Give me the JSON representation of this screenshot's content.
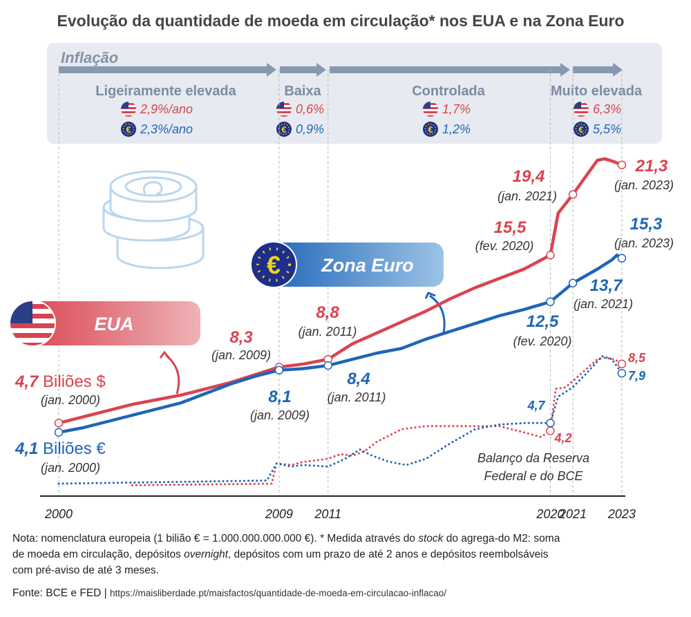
{
  "title": "Evolução da quantidade de moeda em circulação* nos EUA e na Zona Euro",
  "inflation": {
    "heading": "Inflação",
    "periods": [
      {
        "label": "Ligeiramente elevada",
        "us": "2,9%/ano",
        "eu": "2,3%/ano"
      },
      {
        "label": "Baixa",
        "us": "0,6%",
        "eu": "0,9%"
      },
      {
        "label": "Controlada",
        "us": "1,7%",
        "eu": "1,2%"
      },
      {
        "label": "Muito elevada",
        "us": "6,3%",
        "eu": "5,5%"
      }
    ]
  },
  "legend": {
    "us": "EUA",
    "eu": "Zona Euro"
  },
  "balance_label": [
    "Balanço da Reserva",
    "Federal e do BCE"
  ],
  "labels": {
    "us_2000": {
      "value": "4,7",
      "unit": " Biliões $",
      "date": "(jan. 2000)"
    },
    "eu_2000": {
      "value": "4,1",
      "unit": " Biliões €",
      "date": "(jan. 2000)"
    },
    "us_2009": {
      "value": "8,3",
      "date": "(jan. 2009)"
    },
    "eu_2009": {
      "value": "8,1",
      "date": "(jan. 2009)"
    },
    "us_2011": {
      "value": "8,8",
      "date": "(jan. 2011)"
    },
    "eu_2011": {
      "value": "8,4",
      "date": "(jan. 2011)"
    },
    "us_2020": {
      "value": "15,5",
      "date": "(fev. 2020)"
    },
    "eu_2020": {
      "value": "12,5",
      "date": "(fev. 2020)"
    },
    "us_2021": {
      "value": "19,4",
      "date": "(jan. 2021)"
    },
    "eu_2021": {
      "value": "13,7",
      "date": "(jan. 2021)"
    },
    "us_2023": {
      "value": "21,3",
      "date": "(jan. 2023)"
    },
    "eu_2023": {
      "value": "15,3",
      "date": "(jan. 2023)"
    },
    "fed_2020": "4,2",
    "ecb_2020": "4,7",
    "fed_2023": "8,5",
    "ecb_2023": "7,9"
  },
  "note": {
    "p1": "Nota: nomenclatura europeia (1 bilião € = 1.000.000.000.000 €). * Medida através do ",
    "i1": "stock",
    "p2": " do agrega-do M2: soma de moeda em circulação, depósitos ",
    "i2": "overnight",
    "p3": ", depósitos com um prazo de até 2 anos e depósitos reembolsáveis com pré-aviso de até 3 meses."
  },
  "source": {
    "label": "Fonte: BCE e FED",
    "url": "https://maisliberdade.pt/maisfactos/quantidade-de-moeda-em-circulacao-inflacao/"
  },
  "chart_data": {
    "type": "line",
    "title": "Evolução da quantidade de moeda em circulação* nos EUA e na Zona Euro",
    "x_ticks": [
      "2000",
      "2009",
      "2011",
      "2020",
      "2021",
      "2023"
    ],
    "x_tick_values": [
      2000,
      2009,
      2011,
      2020.08,
      2021,
      2023
    ],
    "xlim": [
      2000,
      2023
    ],
    "ylim": [
      0,
      22
    ],
    "grid": "vertical dashed at key dates",
    "colors": {
      "us": "#d9434f",
      "eu": "#1f65b8"
    },
    "series": [
      {
        "name": "EUA",
        "style": "solid",
        "color": "#d9434f",
        "x": [
          2000,
          2001,
          2002,
          2003,
          2004,
          2005,
          2006,
          2007,
          2008,
          2009,
          2010,
          2011,
          2012,
          2013,
          2014,
          2015,
          2016,
          2017,
          2018,
          2019,
          2020.08,
          2020.4,
          2021,
          2021.5,
          2022,
          2022.3,
          2022.7,
          2023
        ],
        "y": [
          4.7,
          5.1,
          5.5,
          5.9,
          6.2,
          6.5,
          6.9,
          7.3,
          7.8,
          8.3,
          8.5,
          8.8,
          9.8,
          10.5,
          11.2,
          11.9,
          12.7,
          13.4,
          14.0,
          14.6,
          15.5,
          18.2,
          19.4,
          20.5,
          21.6,
          21.7,
          21.5,
          21.3
        ]
      },
      {
        "name": "Zona Euro",
        "style": "solid",
        "color": "#1f65b8",
        "x": [
          2000,
          2001,
          2002,
          2003,
          2004,
          2005,
          2006,
          2007,
          2008,
          2009,
          2010,
          2011,
          2012,
          2013,
          2014,
          2015,
          2016,
          2017,
          2018,
          2019,
          2020.08,
          2021,
          2022,
          2022.6,
          2022.8,
          2023
        ],
        "y": [
          4.1,
          4.4,
          4.8,
          5.2,
          5.6,
          6.0,
          6.6,
          7.2,
          7.7,
          8.1,
          8.2,
          8.4,
          8.8,
          9.2,
          9.5,
          10.1,
          10.6,
          11.1,
          11.6,
          12.0,
          12.5,
          13.7,
          14.6,
          15.2,
          15.5,
          15.3
        ]
      },
      {
        "name": "Balanço da Reserva Federal",
        "style": "dotted",
        "color": "#d9434f",
        "x": [
          2003,
          2008.7,
          2008.9,
          2009.5,
          2010,
          2011,
          2011.5,
          2012,
          2012.5,
          2013,
          2014,
          2015,
          2016,
          2017,
          2018,
          2019,
          2019.7,
          2020.08,
          2020.3,
          2020.7,
          2021,
          2021.5,
          2022,
          2022.3,
          2022.7,
          2023
        ],
        "y": [
          0.7,
          0.8,
          2.1,
          2.0,
          2.2,
          2.4,
          2.7,
          2.6,
          2.9,
          3.5,
          4.3,
          4.5,
          4.5,
          4.5,
          4.5,
          4.1,
          3.8,
          4.2,
          6.9,
          7.0,
          7.4,
          8.1,
          8.8,
          8.9,
          8.8,
          8.5
        ]
      },
      {
        "name": "Balanço do BCE",
        "style": "dotted",
        "color": "#1f65b8",
        "x": [
          2000,
          2008.5,
          2008.9,
          2009.5,
          2010,
          2011,
          2011.7,
          2012.3,
          2012.8,
          2013.5,
          2014.2,
          2015,
          2016,
          2017,
          2018,
          2019,
          2020.08,
          2020.4,
          2021,
          2021.5,
          2022.2,
          2022.6,
          2023
        ],
        "y": [
          0.8,
          1.0,
          2.1,
          1.9,
          2.0,
          1.9,
          2.4,
          3.0,
          2.6,
          2.2,
          2.0,
          2.4,
          3.4,
          4.3,
          4.6,
          4.7,
          4.7,
          6.4,
          7.0,
          7.8,
          9.0,
          8.8,
          7.9
        ]
      }
    ],
    "annotations": [
      {
        "series": 0,
        "x": 2000,
        "y": 4.7
      },
      {
        "series": 0,
        "x": 2009,
        "y": 8.3
      },
      {
        "series": 0,
        "x": 2011,
        "y": 8.8
      },
      {
        "series": 0,
        "x": 2020.08,
        "y": 15.5
      },
      {
        "series": 0,
        "x": 2021,
        "y": 19.4
      },
      {
        "series": 0,
        "x": 2023,
        "y": 21.3
      },
      {
        "series": 1,
        "x": 2000,
        "y": 4.1
      },
      {
        "series": 1,
        "x": 2009,
        "y": 8.1
      },
      {
        "series": 1,
        "x": 2011,
        "y": 8.4
      },
      {
        "series": 1,
        "x": 2020.08,
        "y": 12.5
      },
      {
        "series": 1,
        "x": 2021,
        "y": 13.7
      },
      {
        "series": 1,
        "x": 2023,
        "y": 15.3
      },
      {
        "series": 2,
        "x": 2020.08,
        "y": 4.2
      },
      {
        "series": 2,
        "x": 2023,
        "y": 8.5
      },
      {
        "series": 3,
        "x": 2020.08,
        "y": 4.7
      },
      {
        "series": 3,
        "x": 2023,
        "y": 7.9
      }
    ]
  }
}
